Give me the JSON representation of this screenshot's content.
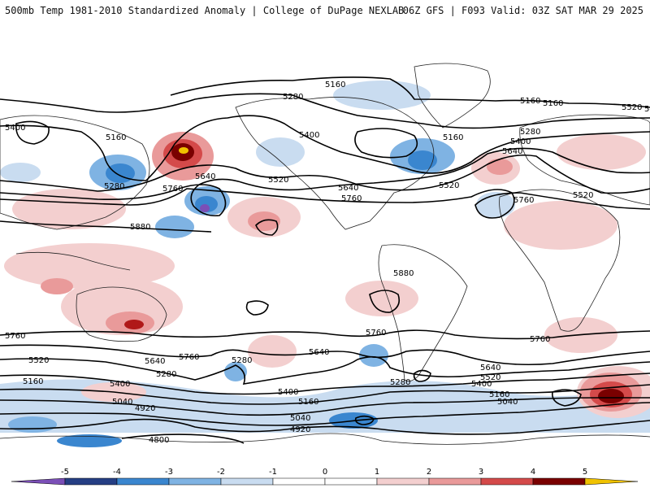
{
  "header": {
    "title": "500mb Temp 1981-2010 Standardized Anomaly | College of DuPage NEXLAB",
    "run_info": "06Z GFS | F093 Valid: 03Z SAT MAR 29 2025"
  },
  "colors": {
    "anom_neg5": "#7b4fb7",
    "anom_neg4": "#253e84",
    "anom_neg3": "#3a86cf",
    "anom_neg2": "#7fb3e3",
    "anom_neg1": "#c9dcf0",
    "anom_pos1": "#f3cfcf",
    "anom_pos2": "#e99a9a",
    "anom_pos3": "#d44a4a",
    "anom_pos4": "#b01818",
    "anom_pos5": "#7a0000",
    "anom_max": "#f0c200",
    "contour": "#000000",
    "coast": "#222222"
  },
  "contour_labels": [
    "5160",
    "5280",
    "5160",
    "5400",
    "5160",
    "5160",
    "5280",
    "5520",
    "5280",
    "5400",
    "5640",
    "5400",
    "5640",
    "5760",
    "5520",
    "5640",
    "5760",
    "5520",
    "5760",
    "5880",
    "5880",
    "5520",
    "5760",
    "5760",
    "5640",
    "5400",
    "5280",
    "5160",
    "5040",
    "4920",
    "4800",
    "5520",
    "5280",
    "5760",
    "5640",
    "5040",
    "4920",
    "5400",
    "5160",
    "5280",
    "5640",
    "5520",
    "5400",
    "5160",
    "5040",
    "5760",
    "5400",
    "5160"
  ],
  "colorbar": {
    "ticks": [
      "-5",
      "-4",
      "-3",
      "-2",
      "-1",
      "0",
      "1",
      "2",
      "3",
      "4",
      "5"
    ]
  }
}
